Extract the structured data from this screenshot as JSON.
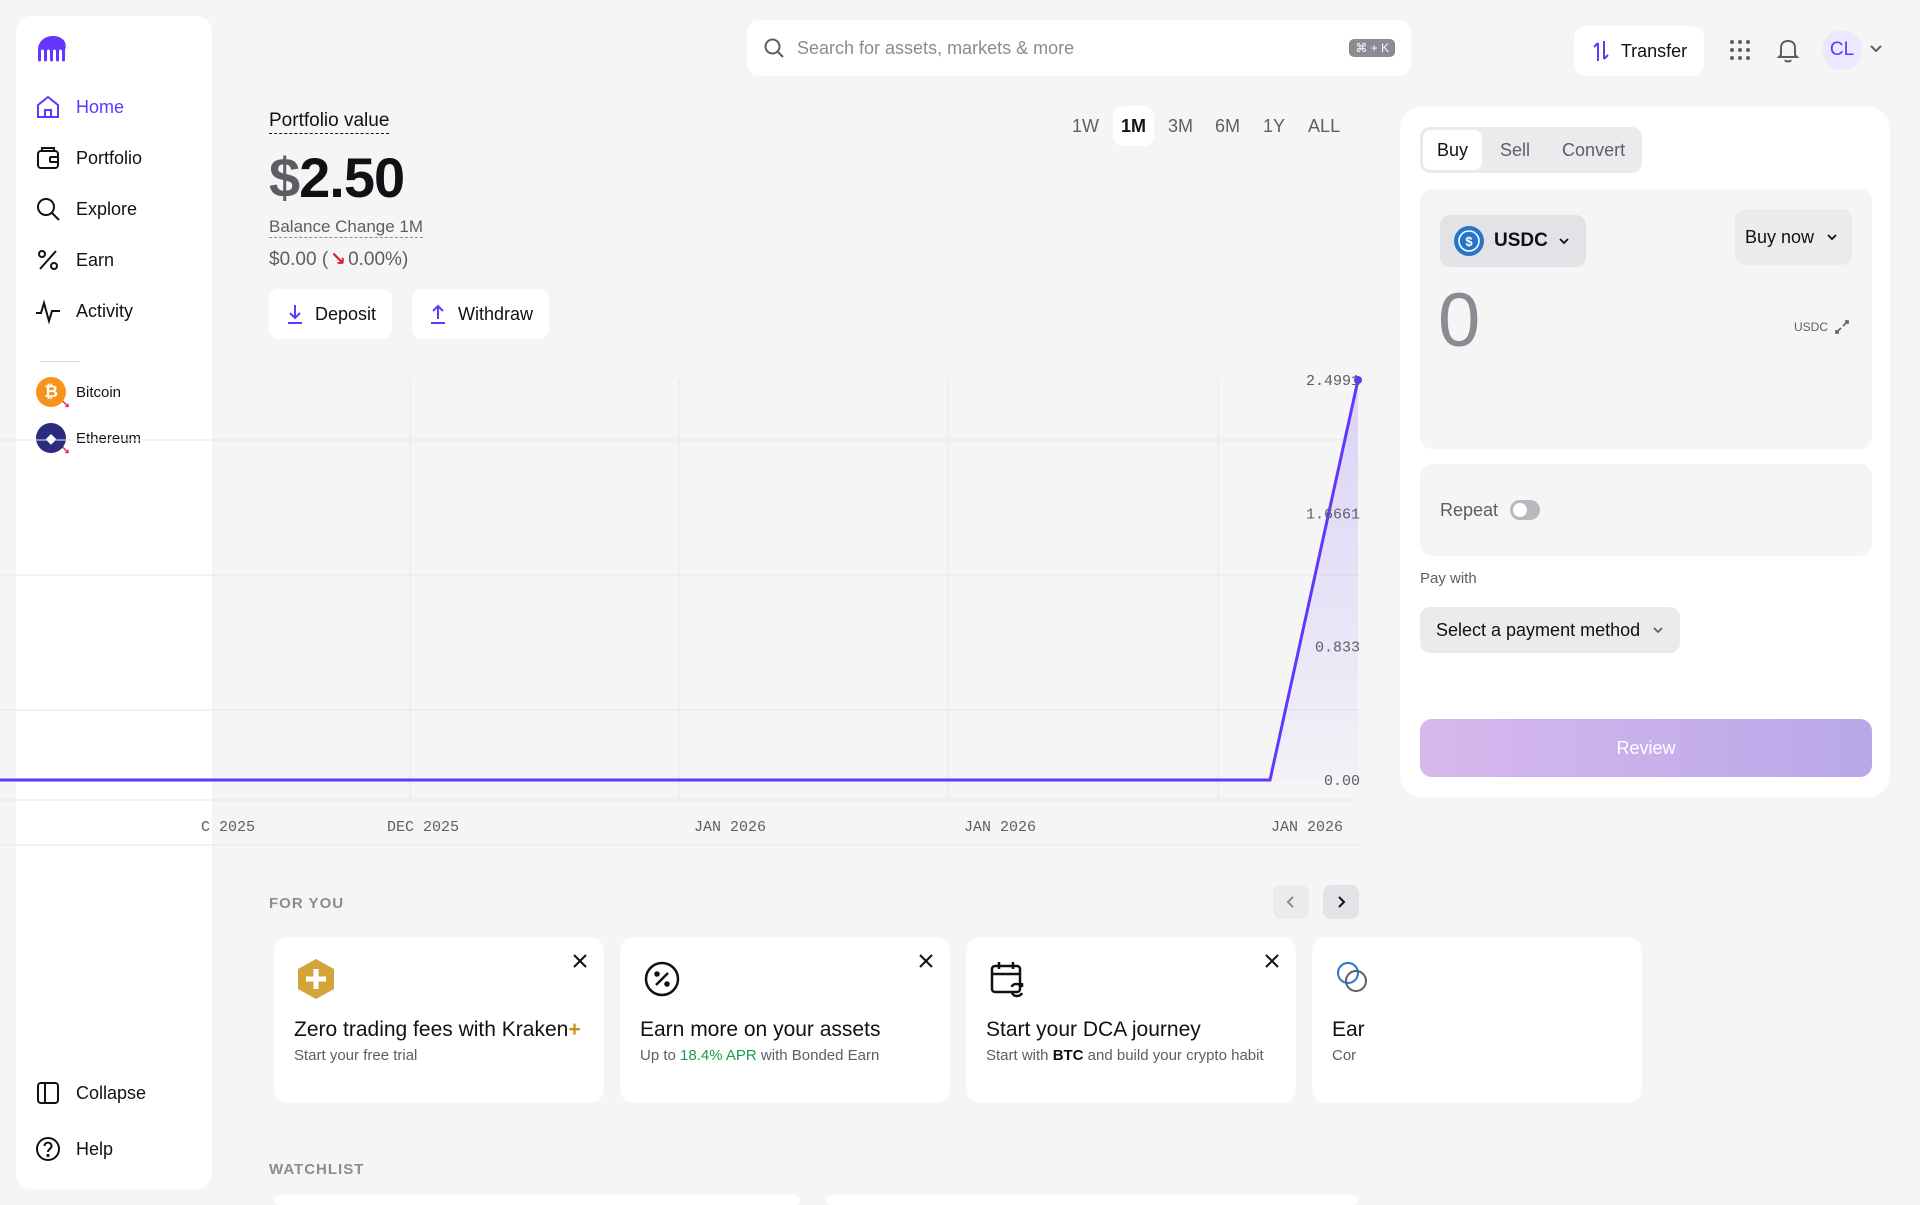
{
  "sidebar": {
    "nav": [
      {
        "label": "Home",
        "icon": "home-icon"
      },
      {
        "label": "Portfolio",
        "icon": "wallet-icon"
      },
      {
        "label": "Explore",
        "icon": "search-icon"
      },
      {
        "label": "Earn",
        "icon": "percent-icon"
      },
      {
        "label": "Activity",
        "icon": "activity-icon"
      }
    ],
    "assets": [
      {
        "label": "Bitcoin",
        "symbol": "₿",
        "color": "#f7931a"
      },
      {
        "label": "Ethereum",
        "symbol": "◆",
        "color": "#2b2c7e"
      }
    ],
    "collapse_label": "Collapse",
    "help_label": "Help"
  },
  "topbar": {
    "search_placeholder": "Search for assets, markets & more",
    "shortcut": "⌘ + K",
    "transfer_label": "Transfer",
    "avatar_initials": "CL"
  },
  "portfolio": {
    "label": "Portfolio value",
    "currency": "$",
    "value": "2.50",
    "balance_change_label": "Balance Change 1M",
    "change_amount": "$0.00 (",
    "change_arrow": "↘",
    "change_pct": "0.00%)",
    "deposit_label": "Deposit",
    "withdraw_label": "Withdraw",
    "ranges": [
      "1W",
      "1M",
      "3M",
      "6M",
      "1Y",
      "ALL"
    ],
    "active_range": "1M"
  },
  "chart_data": {
    "type": "line",
    "x_tick_labels": [
      "C 2025",
      "DEC 2025",
      "JAN 2026",
      "JAN 2026",
      "JAN 2026"
    ],
    "y_tick_labels": [
      "2.4991",
      "1.6661",
      "0.833",
      "0.00"
    ],
    "ylim": [
      0,
      2.4991
    ],
    "series": [
      {
        "values": [
          0,
          0,
          0,
          0,
          0,
          0,
          0,
          0,
          0,
          0,
          0,
          0,
          2.4991
        ]
      }
    ],
    "accent": "#6236ff"
  },
  "for_you": {
    "label": "FOR YOU",
    "cards": [
      {
        "title": "Zero trading fees with Kraken",
        "title_suffix": "+",
        "sub": "Start your free trial"
      },
      {
        "title": "Earn more on your assets",
        "sub_pre": "Up to ",
        "sub_highlight": "18.4% APR",
        "sub_post": " with Bonded Earn"
      },
      {
        "title": "Start your DCA journey",
        "sub_pre": "Start with ",
        "sub_highlight": "BTC",
        "sub_post": " and build your crypto habit"
      },
      {
        "title": "Ear",
        "sub": "Cor"
      }
    ]
  },
  "watchlist": {
    "label": "WATCHLIST"
  },
  "trade": {
    "tabs": [
      "Buy",
      "Sell",
      "Convert"
    ],
    "active_tab": "Buy",
    "asset": "USDC",
    "order_type": "Buy now",
    "amount": "0",
    "unit": "USDC",
    "repeat_label": "Repeat",
    "pay_with_label": "Pay with",
    "payment_placeholder": "Select a payment method",
    "review_label": "Review"
  }
}
